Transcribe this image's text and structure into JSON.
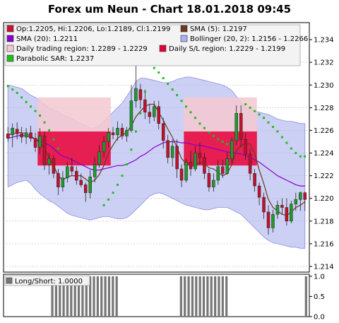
{
  "chart_data": [
    {
      "type": "candlestick",
      "title": "Forex um Neun - Chart 18.01.2018 09:45",
      "y_ticks": [
        1.214,
        1.216,
        1.218,
        1.22,
        1.222,
        1.224,
        1.226,
        1.228,
        1.23,
        1.232,
        1.234
      ],
      "ylim": [
        1.2135,
        1.2355
      ],
      "legend": [
        {
          "id": "ohlc",
          "label": "Op:1.2205, Hi:1.2206, Lo:1.2189, Cl:1.2199",
          "color": "#cc1133"
        },
        {
          "id": "sma5",
          "label": "SMA (5): 1.2197",
          "color": "#6b3a1e"
        },
        {
          "id": "sma20",
          "label": "SMA (20): 1.2211",
          "color": "#8800cc"
        },
        {
          "id": "bollinger",
          "label": "Bollinger (20, 2): 1.2156 - 1.2266",
          "color": "#aab0ee"
        },
        {
          "id": "daily_trading",
          "label": "Daily trading region: 1.2289 - 1.2229",
          "color": "#f5c8d0"
        },
        {
          "id": "daily_sl",
          "label": "Daily S/L region: 1.2229 - 1.2199",
          "color": "#e4003a"
        },
        {
          "id": "psar",
          "label": "Parabolic SAR: 1.2237",
          "color": "#22bb22"
        }
      ],
      "candles": [
        {
          "o": 1.2257,
          "h": 1.2263,
          "l": 1.225,
          "c": 1.2253
        },
        {
          "o": 1.2256,
          "h": 1.2266,
          "l": 1.2245,
          "c": 1.2262
        },
        {
          "o": 1.2261,
          "h": 1.2267,
          "l": 1.2252,
          "c": 1.2257
        },
        {
          "o": 1.2257,
          "h": 1.2263,
          "l": 1.2249,
          "c": 1.2254
        },
        {
          "o": 1.2254,
          "h": 1.2262,
          "l": 1.2248,
          "c": 1.2258
        },
        {
          "o": 1.2258,
          "h": 1.2264,
          "l": 1.225,
          "c": 1.2253
        },
        {
          "o": 1.2253,
          "h": 1.2258,
          "l": 1.2241,
          "c": 1.2245
        },
        {
          "o": 1.2245,
          "h": 1.2262,
          "l": 1.2239,
          "c": 1.2255
        },
        {
          "o": 1.2255,
          "h": 1.2259,
          "l": 1.2225,
          "c": 1.223
        },
        {
          "o": 1.223,
          "h": 1.224,
          "l": 1.2221,
          "c": 1.2235
        },
        {
          "o": 1.2235,
          "h": 1.2238,
          "l": 1.2218,
          "c": 1.2222
        },
        {
          "o": 1.2222,
          "h": 1.2226,
          "l": 1.2203,
          "c": 1.221
        },
        {
          "o": 1.221,
          "h": 1.2224,
          "l": 1.2206,
          "c": 1.2218
        },
        {
          "o": 1.2218,
          "h": 1.2232,
          "l": 1.2214,
          "c": 1.2228
        },
        {
          "o": 1.2228,
          "h": 1.2236,
          "l": 1.222,
          "c": 1.2224
        },
        {
          "o": 1.2224,
          "h": 1.2228,
          "l": 1.2212,
          "c": 1.2216
        },
        {
          "o": 1.2216,
          "h": 1.2222,
          "l": 1.221,
          "c": 1.2212
        },
        {
          "o": 1.2212,
          "h": 1.2214,
          "l": 1.2197,
          "c": 1.2205
        },
        {
          "o": 1.2205,
          "h": 1.2225,
          "l": 1.22,
          "c": 1.2219
        },
        {
          "o": 1.2219,
          "h": 1.2236,
          "l": 1.2214,
          "c": 1.223
        },
        {
          "o": 1.223,
          "h": 1.2247,
          "l": 1.2227,
          "c": 1.2241
        },
        {
          "o": 1.2241,
          "h": 1.2255,
          "l": 1.2236,
          "c": 1.225
        },
        {
          "o": 1.225,
          "h": 1.2262,
          "l": 1.2245,
          "c": 1.2258
        },
        {
          "o": 1.2258,
          "h": 1.2263,
          "l": 1.2252,
          "c": 1.2256
        },
        {
          "o": 1.2256,
          "h": 1.2268,
          "l": 1.2251,
          "c": 1.2262
        },
        {
          "o": 1.2262,
          "h": 1.2266,
          "l": 1.2252,
          "c": 1.2255
        },
        {
          "o": 1.2255,
          "h": 1.2263,
          "l": 1.225,
          "c": 1.226
        },
        {
          "o": 1.226,
          "h": 1.23,
          "l": 1.2258,
          "c": 1.2286
        },
        {
          "o": 1.2286,
          "h": 1.2321,
          "l": 1.228,
          "c": 1.2297
        },
        {
          "o": 1.2296,
          "h": 1.2301,
          "l": 1.2279,
          "c": 1.2287
        },
        {
          "o": 1.2287,
          "h": 1.2296,
          "l": 1.227,
          "c": 1.2276
        },
        {
          "o": 1.2276,
          "h": 1.2283,
          "l": 1.2266,
          "c": 1.2272
        },
        {
          "o": 1.2272,
          "h": 1.2286,
          "l": 1.2268,
          "c": 1.2281
        },
        {
          "o": 1.2281,
          "h": 1.2286,
          "l": 1.2261,
          "c": 1.2266
        },
        {
          "o": 1.2266,
          "h": 1.2271,
          "l": 1.2244,
          "c": 1.2251
        },
        {
          "o": 1.2251,
          "h": 1.2256,
          "l": 1.2231,
          "c": 1.2236
        },
        {
          "o": 1.2236,
          "h": 1.2252,
          "l": 1.2228,
          "c": 1.2246
        },
        {
          "o": 1.2246,
          "h": 1.2252,
          "l": 1.2218,
          "c": 1.2226
        },
        {
          "o": 1.2226,
          "h": 1.223,
          "l": 1.221,
          "c": 1.2216
        },
        {
          "o": 1.2216,
          "h": 1.2235,
          "l": 1.2214,
          "c": 1.2232
        },
        {
          "o": 1.2232,
          "h": 1.2242,
          "l": 1.222,
          "c": 1.2226
        },
        {
          "o": 1.2226,
          "h": 1.2246,
          "l": 1.2224,
          "c": 1.224
        },
        {
          "o": 1.224,
          "h": 1.2249,
          "l": 1.223,
          "c": 1.2236
        },
        {
          "o": 1.2236,
          "h": 1.224,
          "l": 1.2217,
          "c": 1.2222
        },
        {
          "o": 1.2222,
          "h": 1.2226,
          "l": 1.2206,
          "c": 1.221
        },
        {
          "o": 1.221,
          "h": 1.2222,
          "l": 1.2206,
          "c": 1.2216
        },
        {
          "o": 1.2216,
          "h": 1.2234,
          "l": 1.2212,
          "c": 1.2228
        },
        {
          "o": 1.2228,
          "h": 1.2234,
          "l": 1.2218,
          "c": 1.2222
        },
        {
          "o": 1.2222,
          "h": 1.2241,
          "l": 1.2221,
          "c": 1.2235
        },
        {
          "o": 1.2235,
          "h": 1.2254,
          "l": 1.2231,
          "c": 1.2251
        },
        {
          "o": 1.2251,
          "h": 1.2282,
          "l": 1.2247,
          "c": 1.2275
        },
        {
          "o": 1.2275,
          "h": 1.2282,
          "l": 1.2245,
          "c": 1.2252
        },
        {
          "o": 1.2252,
          "h": 1.2258,
          "l": 1.2234,
          "c": 1.2239
        },
        {
          "o": 1.2239,
          "h": 1.2244,
          "l": 1.2216,
          "c": 1.2222
        },
        {
          "o": 1.2222,
          "h": 1.2226,
          "l": 1.2206,
          "c": 1.2211
        },
        {
          "o": 1.2211,
          "h": 1.2214,
          "l": 1.2194,
          "c": 1.2201
        },
        {
          "o": 1.2201,
          "h": 1.2205,
          "l": 1.2182,
          "c": 1.2188
        },
        {
          "o": 1.2188,
          "h": 1.2194,
          "l": 1.2168,
          "c": 1.2174
        },
        {
          "o": 1.2174,
          "h": 1.219,
          "l": 1.217,
          "c": 1.2186
        },
        {
          "o": 1.2186,
          "h": 1.2198,
          "l": 1.2182,
          "c": 1.2194
        },
        {
          "o": 1.2194,
          "h": 1.22,
          "l": 1.2186,
          "c": 1.2192
        },
        {
          "o": 1.2192,
          "h": 1.22,
          "l": 1.2176,
          "c": 1.218
        },
        {
          "o": 1.218,
          "h": 1.2198,
          "l": 1.2178,
          "c": 1.2195
        },
        {
          "o": 1.2195,
          "h": 1.2205,
          "l": 1.2189,
          "c": 1.2199
        },
        {
          "o": 1.2199,
          "h": 1.2206,
          "l": 1.2189,
          "c": 1.2205
        },
        {
          "o": 1.2205,
          "h": 1.2206,
          "l": 1.2189,
          "c": 1.2199
        }
      ],
      "sma5": [
        1.2256,
        1.2257,
        1.2258,
        1.2258,
        1.2257,
        1.2255,
        1.2252,
        1.2249,
        1.2244,
        1.2236,
        1.2229,
        1.222,
        1.2216,
        1.2219,
        1.222,
        1.222,
        1.222,
        1.2217,
        1.2214,
        1.2216,
        1.2221,
        1.2229,
        1.224,
        1.2247,
        1.2253,
        1.2256,
        1.2258,
        1.2264,
        1.2272,
        1.2277,
        1.2281,
        1.2283,
        1.2283,
        1.2276,
        1.2269,
        1.2261,
        1.2254,
        1.2245,
        1.2235,
        1.2231,
        1.2229,
        1.2228,
        1.2232,
        1.2231,
        1.2227,
        1.2226,
        1.2223,
        1.222,
        1.2222,
        1.223,
        1.2242,
        1.2247,
        1.2248,
        1.2248,
        1.224,
        1.2225,
        1.2213,
        1.2199,
        1.2192,
        1.2189,
        1.2186,
        1.2185,
        1.2188,
        1.2192,
        1.2194,
        1.2197
      ],
      "sma20": [
        1.2253,
        1.2254,
        1.2255,
        1.2256,
        1.2255,
        1.2254,
        1.2252,
        1.2251,
        1.2249,
        1.2247,
        1.2244,
        1.224,
        1.2237,
        1.2236,
        1.2234,
        1.2232,
        1.223,
        1.2228,
        1.2226,
        1.2225,
        1.2225,
        1.2226,
        1.2227,
        1.2228,
        1.2229,
        1.2229,
        1.223,
        1.2232,
        1.2234,
        1.2237,
        1.2239,
        1.2242,
        1.2245,
        1.2247,
        1.2249,
        1.225,
        1.225,
        1.225,
        1.2249,
        1.2249,
        1.2248,
        1.2247,
        1.2247,
        1.2246,
        1.2245,
        1.2244,
        1.2243,
        1.2242,
        1.2241,
        1.224,
        1.224,
        1.2239,
        1.2238,
        1.2236,
        1.2234,
        1.2232,
        1.2229,
        1.2226,
        1.2223,
        1.222,
        1.2218,
        1.2216,
        1.2214,
        1.2212,
        1.2211,
        1.2211
      ],
      "boll_upper": [
        1.23,
        1.2299,
        1.2298,
        1.2297,
        1.2294,
        1.2291,
        1.2289,
        1.2286,
        1.2283,
        1.228,
        1.2278,
        1.2276,
        1.2274,
        1.2272,
        1.227,
        1.2268,
        1.2266,
        1.2264,
        1.2262,
        1.2262,
        1.2264,
        1.2268,
        1.2272,
        1.2276,
        1.228,
        1.2284,
        1.229,
        1.2296,
        1.2303,
        1.2306,
        1.2306,
        1.2305,
        1.2304,
        1.2303,
        1.2302,
        1.2302,
        1.2303,
        1.2305,
        1.2306,
        1.2307,
        1.2307,
        1.2306,
        1.2305,
        1.2304,
        1.2303,
        1.2302,
        1.2301,
        1.23,
        1.2298,
        1.2295,
        1.229,
        1.2285,
        1.228,
        1.2278,
        1.2277,
        1.2276,
        1.2275,
        1.2274,
        1.2272,
        1.227,
        1.2269,
        1.2268,
        1.2268,
        1.2267,
        1.2266,
        1.2266
      ],
      "boll_lower": [
        1.221,
        1.2212,
        1.2214,
        1.2215,
        1.2216,
        1.2213,
        1.2208,
        1.2204,
        1.2201,
        1.2198,
        1.2196,
        1.2193,
        1.219,
        1.2187,
        1.2185,
        1.2184,
        1.2183,
        1.2182,
        1.2181,
        1.2182,
        1.2183,
        1.2184,
        1.2184,
        1.2183,
        1.2182,
        1.2182,
        1.2183,
        1.2186,
        1.219,
        1.2194,
        1.2198,
        1.2202,
        1.2204,
        1.2205,
        1.2204,
        1.2202,
        1.22,
        1.2198,
        1.2196,
        1.2194,
        1.2193,
        1.2192,
        1.2191,
        1.219,
        1.219,
        1.2191,
        1.2192,
        1.2192,
        1.2192,
        1.219,
        1.2188,
        1.2186,
        1.2182,
        1.2178,
        1.2174,
        1.217,
        1.2166,
        1.2163,
        1.2161,
        1.216,
        1.2159,
        1.2158,
        1.2157,
        1.2157,
        1.2156,
        1.2156
      ],
      "psar": [
        1.2299,
        1.2296,
        1.2293,
        1.2289,
        1.2285,
        1.2281,
        1.2277,
        1.2273,
        1.2267,
        1.226,
        1.2252,
        1.2244,
        null,
        null,
        null,
        null,
        null,
        null,
        null,
        null,
        null,
        1.2194,
        1.2199,
        1.2205,
        1.2212,
        1.222,
        1.223,
        1.2243,
        1.2259,
        1.2275,
        1.2294,
        1.2318,
        1.2315,
        1.2311,
        1.2306,
        1.2301,
        1.2296,
        1.2291,
        1.2286,
        1.2281,
        1.2276,
        1.2271,
        1.2266,
        1.2262,
        1.2258,
        1.2255,
        1.2252,
        1.225,
        1.2248,
        null,
        null,
        null,
        1.2283,
        1.228,
        1.2277,
        1.2274,
        1.2271,
        1.2267,
        1.2263,
        1.2259,
        1.2254,
        1.2249,
        1.2244,
        1.224,
        1.2237,
        1.2237
      ],
      "trading_regions": [
        {
          "start": 7,
          "end": 22,
          "top": 1.2289,
          "bottom": 1.2229
        },
        {
          "start": 39,
          "end": 54,
          "top": 1.2289,
          "bottom": 1.2229
        },
        {
          "start": 70,
          "end": 71,
          "top": 1.2289,
          "bottom": 1.2229
        }
      ],
      "sl_regions": [
        {
          "start": 7,
          "end": 22,
          "top": 1.2259,
          "bottom": 1.2229
        },
        {
          "start": 39,
          "end": 54,
          "top": 1.2259,
          "bottom": 1.2229
        },
        {
          "start": 70,
          "end": 71,
          "top": 1.2229,
          "bottom": 1.2199
        }
      ]
    },
    {
      "type": "bar",
      "legend": [
        {
          "id": "longshort",
          "label": "Long/Short: 1.0000",
          "color": "#777777"
        }
      ],
      "y_ticks": [
        0.0,
        0.5,
        1.0
      ],
      "ylim": [
        0,
        1.05
      ],
      "values": [
        0,
        0,
        0,
        0,
        0,
        0,
        0,
        0,
        0,
        0,
        0,
        0,
        1,
        1,
        1,
        1,
        1,
        1,
        1,
        1,
        1,
        1,
        1,
        1,
        1,
        1,
        1,
        1,
        1,
        1,
        0,
        0,
        0,
        0,
        0,
        0,
        0,
        0,
        0,
        0,
        0,
        0,
        0,
        0,
        0,
        0,
        1,
        1,
        1,
        1,
        1,
        1,
        1,
        1,
        1,
        1,
        1,
        1,
        1,
        0,
        0,
        0,
        0,
        0,
        0,
        0,
        0,
        0,
        0,
        0,
        0,
        0,
        0,
        0,
        0,
        0,
        0,
        0,
        0,
        1
      ]
    }
  ]
}
